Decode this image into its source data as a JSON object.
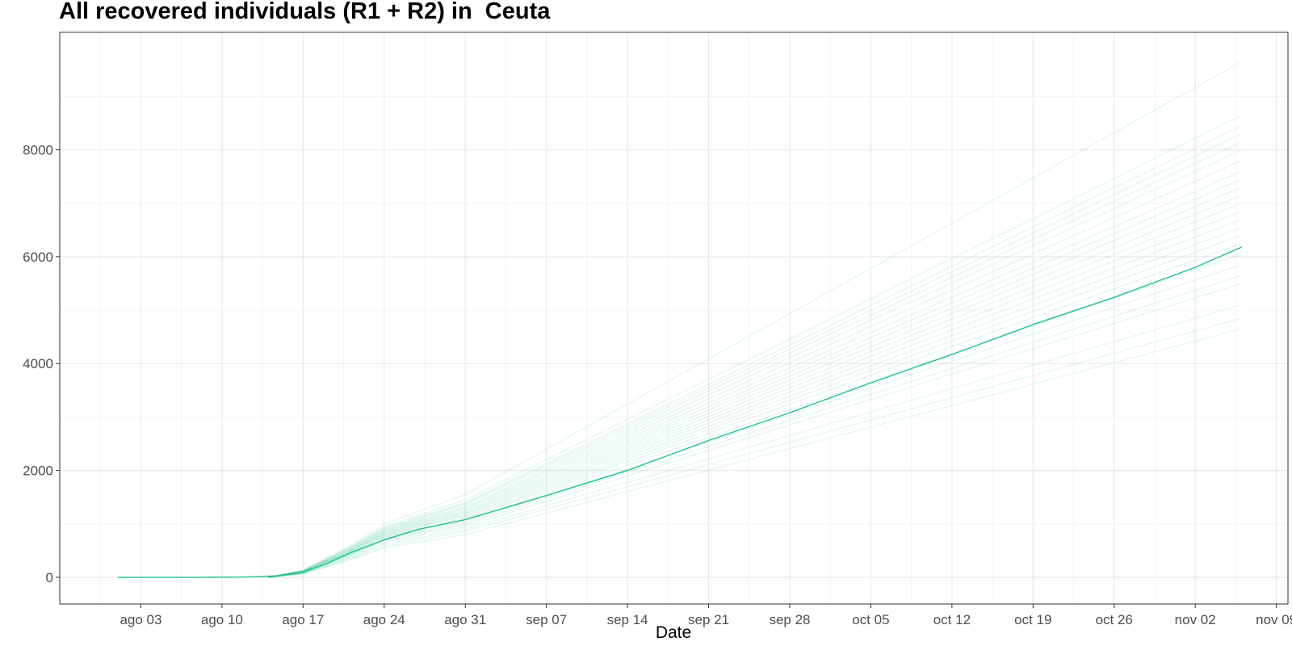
{
  "chart_data": {
    "type": "line",
    "title": "All recovered individuals (R1 + R2) in  Ceuta",
    "xlabel": "Date",
    "ylabel": "",
    "x_range": [
      "2020-07-27",
      "2020-11-10"
    ],
    "ylim": [
      -500,
      10200
    ],
    "x_ticks": [
      {
        "date": "2020-08-03",
        "label": "ago 03"
      },
      {
        "date": "2020-08-10",
        "label": "ago 10"
      },
      {
        "date": "2020-08-17",
        "label": "ago 17"
      },
      {
        "date": "2020-08-24",
        "label": "ago 24"
      },
      {
        "date": "2020-08-31",
        "label": "ago 31"
      },
      {
        "date": "2020-09-07",
        "label": "sep 07"
      },
      {
        "date": "2020-09-14",
        "label": "sep 14"
      },
      {
        "date": "2020-09-21",
        "label": "sep 21"
      },
      {
        "date": "2020-09-28",
        "label": "sep 28"
      },
      {
        "date": "2020-10-05",
        "label": "oct 05"
      },
      {
        "date": "2020-10-12",
        "label": "oct 12"
      },
      {
        "date": "2020-10-19",
        "label": "oct 19"
      },
      {
        "date": "2020-10-26",
        "label": "oct 26"
      },
      {
        "date": "2020-11-02",
        "label": "nov 02"
      },
      {
        "date": "2020-11-09",
        "label": "nov 09"
      }
    ],
    "y_ticks": [
      {
        "value": 0,
        "label": "0"
      },
      {
        "value": 2000,
        "label": "2000"
      },
      {
        "value": 4000,
        "label": "4000"
      },
      {
        "value": 6000,
        "label": "6000"
      },
      {
        "value": 8000,
        "label": "8000"
      }
    ],
    "grid": true,
    "legend": "none",
    "colors": {
      "main_line": "#1ec08e",
      "simulation_lines": "#1ec08e",
      "panel_border": "#333333",
      "grid_major": "#ebebeb",
      "grid_minor": "#f4f4f4"
    },
    "series": [
      {
        "role": "main",
        "x": [
          "2020-08-01",
          "2020-08-08",
          "2020-08-12",
          "2020-08-15",
          "2020-08-17",
          "2020-08-19",
          "2020-08-21",
          "2020-08-24",
          "2020-08-27",
          "2020-08-31",
          "2020-09-07",
          "2020-09-14",
          "2020-09-21",
          "2020-09-28",
          "2020-10-05",
          "2020-10-12",
          "2020-10-19",
          "2020-10-26",
          "2020-11-02",
          "2020-11-06"
        ],
        "values": [
          0,
          0,
          5,
          30,
          100,
          250,
          450,
          700,
          900,
          1080,
          1530,
          2000,
          2560,
          3080,
          3640,
          4170,
          4730,
          5240,
          5800,
          6180
        ]
      },
      {
        "role": "simulation",
        "x": [
          "2020-08-14",
          "2020-08-17",
          "2020-08-21",
          "2020-08-24",
          "2020-08-31",
          "2020-11-06"
        ],
        "values": [
          0,
          140,
          580,
          1000,
          1550,
          9650
        ]
      },
      {
        "role": "simulation",
        "x": [
          "2020-08-14",
          "2020-08-17",
          "2020-08-21",
          "2020-08-24",
          "2020-08-31",
          "2020-11-06"
        ],
        "values": [
          0,
          130,
          560,
          950,
          1450,
          8650
        ]
      },
      {
        "role": "simulation",
        "x": [
          "2020-08-14",
          "2020-08-17",
          "2020-08-21",
          "2020-08-24",
          "2020-08-31",
          "2020-11-06"
        ],
        "values": [
          0,
          125,
          550,
          930,
          1400,
          8450
        ]
      },
      {
        "role": "simulation",
        "x": [
          "2020-08-14",
          "2020-08-17",
          "2020-08-21",
          "2020-08-24",
          "2020-08-31",
          "2020-11-06"
        ],
        "values": [
          0,
          120,
          540,
          910,
          1380,
          8300
        ]
      },
      {
        "role": "simulation",
        "x": [
          "2020-08-14",
          "2020-08-17",
          "2020-08-21",
          "2020-08-24",
          "2020-08-31",
          "2020-11-06"
        ],
        "values": [
          0,
          120,
          530,
          900,
          1360,
          8150
        ]
      },
      {
        "role": "simulation",
        "x": [
          "2020-08-14",
          "2020-08-17",
          "2020-08-21",
          "2020-08-24",
          "2020-08-31",
          "2020-11-06"
        ],
        "values": [
          0,
          115,
          520,
          880,
          1320,
          8000
        ]
      },
      {
        "role": "simulation",
        "x": [
          "2020-08-14",
          "2020-08-17",
          "2020-08-21",
          "2020-08-24",
          "2020-08-31",
          "2020-11-06"
        ],
        "values": [
          0,
          115,
          510,
          870,
          1300,
          7800
        ]
      },
      {
        "role": "simulation",
        "x": [
          "2020-08-14",
          "2020-08-17",
          "2020-08-21",
          "2020-08-24",
          "2020-08-31",
          "2020-11-06"
        ],
        "values": [
          0,
          110,
          500,
          850,
          1280,
          7600
        ]
      },
      {
        "role": "simulation",
        "x": [
          "2020-08-14",
          "2020-08-17",
          "2020-08-21",
          "2020-08-24",
          "2020-08-31",
          "2020-11-06"
        ],
        "values": [
          0,
          110,
          500,
          840,
          1250,
          7450
        ]
      },
      {
        "role": "simulation",
        "x": [
          "2020-08-14",
          "2020-08-17",
          "2020-08-21",
          "2020-08-24",
          "2020-08-31",
          "2020-11-06"
        ],
        "values": [
          0,
          105,
          490,
          830,
          1230,
          7300
        ]
      },
      {
        "role": "simulation",
        "x": [
          "2020-08-14",
          "2020-08-17",
          "2020-08-21",
          "2020-08-24",
          "2020-08-31",
          "2020-11-06"
        ],
        "values": [
          0,
          105,
          480,
          820,
          1210,
          7150
        ]
      },
      {
        "role": "simulation",
        "x": [
          "2020-08-14",
          "2020-08-17",
          "2020-08-21",
          "2020-08-24",
          "2020-08-31",
          "2020-11-06"
        ],
        "values": [
          0,
          100,
          470,
          800,
          1190,
          7000
        ]
      },
      {
        "role": "simulation",
        "x": [
          "2020-08-14",
          "2020-08-17",
          "2020-08-21",
          "2020-08-24",
          "2020-08-31",
          "2020-11-06"
        ],
        "values": [
          0,
          100,
          470,
          790,
          1170,
          6850
        ]
      },
      {
        "role": "simulation",
        "x": [
          "2020-08-14",
          "2020-08-17",
          "2020-08-21",
          "2020-08-24",
          "2020-08-31",
          "2020-11-06"
        ],
        "values": [
          0,
          95,
          460,
          780,
          1150,
          6700
        ]
      },
      {
        "role": "simulation",
        "x": [
          "2020-08-14",
          "2020-08-17",
          "2020-08-21",
          "2020-08-24",
          "2020-08-31",
          "2020-11-06"
        ],
        "values": [
          0,
          95,
          450,
          770,
          1120,
          6550
        ]
      },
      {
        "role": "simulation",
        "x": [
          "2020-08-14",
          "2020-08-17",
          "2020-08-21",
          "2020-08-24",
          "2020-08-31",
          "2020-11-06"
        ],
        "values": [
          0,
          90,
          440,
          750,
          1100,
          6400
        ]
      },
      {
        "role": "simulation",
        "x": [
          "2020-08-14",
          "2020-08-17",
          "2020-08-21",
          "2020-08-24",
          "2020-08-31",
          "2020-11-06"
        ],
        "values": [
          0,
          90,
          430,
          740,
          1080,
          6250
        ]
      },
      {
        "role": "simulation",
        "x": [
          "2020-08-14",
          "2020-08-17",
          "2020-08-21",
          "2020-08-24",
          "2020-08-31",
          "2020-11-06"
        ],
        "values": [
          0,
          85,
          420,
          720,
          1050,
          6050
        ]
      },
      {
        "role": "simulation",
        "x": [
          "2020-08-14",
          "2020-08-17",
          "2020-08-21",
          "2020-08-24",
          "2020-08-31",
          "2020-11-06"
        ],
        "values": [
          0,
          85,
          410,
          700,
          1020,
          5850
        ]
      },
      {
        "role": "simulation",
        "x": [
          "2020-08-14",
          "2020-08-17",
          "2020-08-21",
          "2020-08-24",
          "2020-08-31",
          "2020-11-06"
        ],
        "values": [
          0,
          80,
          400,
          680,
          990,
          5650
        ]
      },
      {
        "role": "simulation",
        "x": [
          "2020-08-14",
          "2020-08-17",
          "2020-08-21",
          "2020-08-24",
          "2020-08-31",
          "2020-11-06"
        ],
        "values": [
          0,
          75,
          380,
          650,
          950,
          5500
        ]
      },
      {
        "role": "simulation",
        "x": [
          "2020-08-14",
          "2020-08-17",
          "2020-08-21",
          "2020-08-24",
          "2020-08-31",
          "2020-11-06"
        ],
        "values": [
          0,
          70,
          360,
          620,
          900,
          5100
        ]
      },
      {
        "role": "simulation",
        "x": [
          "2020-08-14",
          "2020-08-17",
          "2020-08-21",
          "2020-08-24",
          "2020-08-31",
          "2020-11-06"
        ],
        "values": [
          0,
          65,
          340,
          580,
          860,
          4850
        ]
      },
      {
        "role": "simulation",
        "x": [
          "2020-08-14",
          "2020-08-17",
          "2020-08-21",
          "2020-08-24",
          "2020-08-31",
          "2020-11-06"
        ],
        "values": [
          0,
          60,
          320,
          550,
          800,
          4650
        ]
      }
    ]
  }
}
